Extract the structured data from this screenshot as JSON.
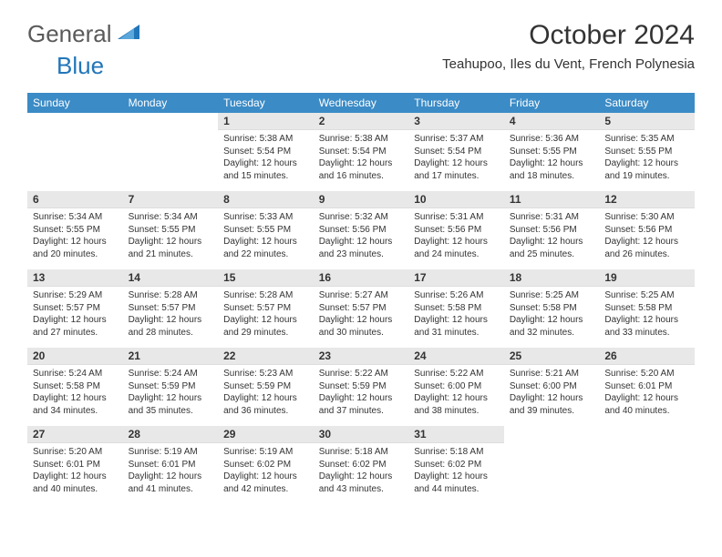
{
  "logo": {
    "text1": "General",
    "text2": "Blue"
  },
  "title": "October 2024",
  "location": "Teahupoo, Iles du Vent, French Polynesia",
  "header_bg": "#3b8bc6",
  "daynum_bg": "#e8e8e8",
  "days_of_week": [
    "Sunday",
    "Monday",
    "Tuesday",
    "Wednesday",
    "Thursday",
    "Friday",
    "Saturday"
  ],
  "weeks": [
    [
      null,
      null,
      {
        "n": "1",
        "sr": "Sunrise: 5:38 AM",
        "ss": "Sunset: 5:54 PM",
        "dl": "Daylight: 12 hours and 15 minutes."
      },
      {
        "n": "2",
        "sr": "Sunrise: 5:38 AM",
        "ss": "Sunset: 5:54 PM",
        "dl": "Daylight: 12 hours and 16 minutes."
      },
      {
        "n": "3",
        "sr": "Sunrise: 5:37 AM",
        "ss": "Sunset: 5:54 PM",
        "dl": "Daylight: 12 hours and 17 minutes."
      },
      {
        "n": "4",
        "sr": "Sunrise: 5:36 AM",
        "ss": "Sunset: 5:55 PM",
        "dl": "Daylight: 12 hours and 18 minutes."
      },
      {
        "n": "5",
        "sr": "Sunrise: 5:35 AM",
        "ss": "Sunset: 5:55 PM",
        "dl": "Daylight: 12 hours and 19 minutes."
      }
    ],
    [
      {
        "n": "6",
        "sr": "Sunrise: 5:34 AM",
        "ss": "Sunset: 5:55 PM",
        "dl": "Daylight: 12 hours and 20 minutes."
      },
      {
        "n": "7",
        "sr": "Sunrise: 5:34 AM",
        "ss": "Sunset: 5:55 PM",
        "dl": "Daylight: 12 hours and 21 minutes."
      },
      {
        "n": "8",
        "sr": "Sunrise: 5:33 AM",
        "ss": "Sunset: 5:55 PM",
        "dl": "Daylight: 12 hours and 22 minutes."
      },
      {
        "n": "9",
        "sr": "Sunrise: 5:32 AM",
        "ss": "Sunset: 5:56 PM",
        "dl": "Daylight: 12 hours and 23 minutes."
      },
      {
        "n": "10",
        "sr": "Sunrise: 5:31 AM",
        "ss": "Sunset: 5:56 PM",
        "dl": "Daylight: 12 hours and 24 minutes."
      },
      {
        "n": "11",
        "sr": "Sunrise: 5:31 AM",
        "ss": "Sunset: 5:56 PM",
        "dl": "Daylight: 12 hours and 25 minutes."
      },
      {
        "n": "12",
        "sr": "Sunrise: 5:30 AM",
        "ss": "Sunset: 5:56 PM",
        "dl": "Daylight: 12 hours and 26 minutes."
      }
    ],
    [
      {
        "n": "13",
        "sr": "Sunrise: 5:29 AM",
        "ss": "Sunset: 5:57 PM",
        "dl": "Daylight: 12 hours and 27 minutes."
      },
      {
        "n": "14",
        "sr": "Sunrise: 5:28 AM",
        "ss": "Sunset: 5:57 PM",
        "dl": "Daylight: 12 hours and 28 minutes."
      },
      {
        "n": "15",
        "sr": "Sunrise: 5:28 AM",
        "ss": "Sunset: 5:57 PM",
        "dl": "Daylight: 12 hours and 29 minutes."
      },
      {
        "n": "16",
        "sr": "Sunrise: 5:27 AM",
        "ss": "Sunset: 5:57 PM",
        "dl": "Daylight: 12 hours and 30 minutes."
      },
      {
        "n": "17",
        "sr": "Sunrise: 5:26 AM",
        "ss": "Sunset: 5:58 PM",
        "dl": "Daylight: 12 hours and 31 minutes."
      },
      {
        "n": "18",
        "sr": "Sunrise: 5:25 AM",
        "ss": "Sunset: 5:58 PM",
        "dl": "Daylight: 12 hours and 32 minutes."
      },
      {
        "n": "19",
        "sr": "Sunrise: 5:25 AM",
        "ss": "Sunset: 5:58 PM",
        "dl": "Daylight: 12 hours and 33 minutes."
      }
    ],
    [
      {
        "n": "20",
        "sr": "Sunrise: 5:24 AM",
        "ss": "Sunset: 5:58 PM",
        "dl": "Daylight: 12 hours and 34 minutes."
      },
      {
        "n": "21",
        "sr": "Sunrise: 5:24 AM",
        "ss": "Sunset: 5:59 PM",
        "dl": "Daylight: 12 hours and 35 minutes."
      },
      {
        "n": "22",
        "sr": "Sunrise: 5:23 AM",
        "ss": "Sunset: 5:59 PM",
        "dl": "Daylight: 12 hours and 36 minutes."
      },
      {
        "n": "23",
        "sr": "Sunrise: 5:22 AM",
        "ss": "Sunset: 5:59 PM",
        "dl": "Daylight: 12 hours and 37 minutes."
      },
      {
        "n": "24",
        "sr": "Sunrise: 5:22 AM",
        "ss": "Sunset: 6:00 PM",
        "dl": "Daylight: 12 hours and 38 minutes."
      },
      {
        "n": "25",
        "sr": "Sunrise: 5:21 AM",
        "ss": "Sunset: 6:00 PM",
        "dl": "Daylight: 12 hours and 39 minutes."
      },
      {
        "n": "26",
        "sr": "Sunrise: 5:20 AM",
        "ss": "Sunset: 6:01 PM",
        "dl": "Daylight: 12 hours and 40 minutes."
      }
    ],
    [
      {
        "n": "27",
        "sr": "Sunrise: 5:20 AM",
        "ss": "Sunset: 6:01 PM",
        "dl": "Daylight: 12 hours and 40 minutes."
      },
      {
        "n": "28",
        "sr": "Sunrise: 5:19 AM",
        "ss": "Sunset: 6:01 PM",
        "dl": "Daylight: 12 hours and 41 minutes."
      },
      {
        "n": "29",
        "sr": "Sunrise: 5:19 AM",
        "ss": "Sunset: 6:02 PM",
        "dl": "Daylight: 12 hours and 42 minutes."
      },
      {
        "n": "30",
        "sr": "Sunrise: 5:18 AM",
        "ss": "Sunset: 6:02 PM",
        "dl": "Daylight: 12 hours and 43 minutes."
      },
      {
        "n": "31",
        "sr": "Sunrise: 5:18 AM",
        "ss": "Sunset: 6:02 PM",
        "dl": "Daylight: 12 hours and 44 minutes."
      },
      null,
      null
    ]
  ]
}
